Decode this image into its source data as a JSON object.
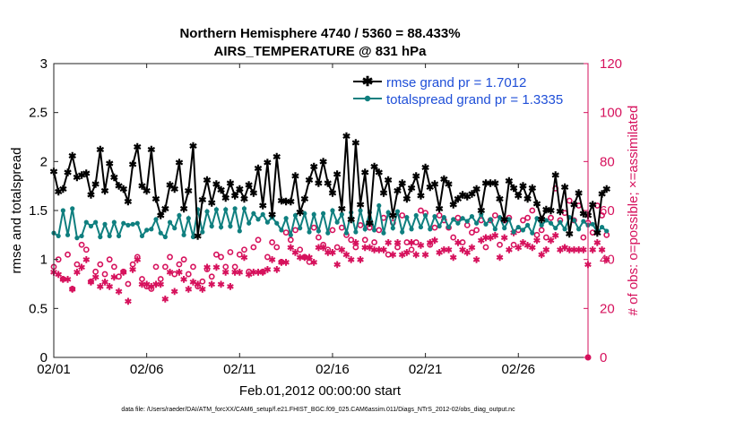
{
  "chart_data": {
    "type": "line",
    "title": "Northern Hemisphere 4740 / 5360 = 88.433%",
    "subtitle": "AIRS_TEMPERATURE @ 831 hPa",
    "xlabel": "Feb.01,2012 00:00:00 start",
    "ylabel": "rmse and totalspread",
    "ylabel_right": "# of obs: o=possible; ×=assimilated",
    "footer": "data file: /Users/raeder/DAI/ATM_forcXX/CAM6_setup/f.e21.FHIST_BGC.f09_025.CAM6assim.011/Diags_NTrS_2012-02/obs_diag_output.nc",
    "x_range": [
      1,
      29.75
    ],
    "ylim": [
      0,
      3
    ],
    "ylim_right": [
      0,
      120
    ],
    "x_ticks": [
      {
        "value": 1,
        "label": "02/01"
      },
      {
        "value": 6,
        "label": "02/06"
      },
      {
        "value": 11,
        "label": "02/11"
      },
      {
        "value": 16,
        "label": "02/16"
      },
      {
        "value": 21,
        "label": "02/21"
      },
      {
        "value": 26,
        "label": "02/26"
      }
    ],
    "y_ticks": [
      "0",
      "0.5",
      "1",
      "1.5",
      "2",
      "2.5",
      "3"
    ],
    "y_ticks_right": [
      "0",
      "20",
      "40",
      "60",
      "80",
      "100",
      "120"
    ],
    "colors": {
      "rmse": "#000000",
      "spread": "#0f7f7f",
      "obs": "#d6115c",
      "legend_text": "#1f4fd8"
    },
    "series": [
      {
        "name": "rmse grand pr = 1.7012",
        "values": [
          1.9,
          1.69,
          1.72,
          1.89,
          2.06,
          1.84,
          1.86,
          1.88,
          1.66,
          1.77,
          2.12,
          1.7,
          1.98,
          1.84,
          1.75,
          1.72,
          1.59,
          1.97,
          2.15,
          1.75,
          1.7,
          2.12,
          1.62,
          1.45,
          1.52,
          1.76,
          1.72,
          1.99,
          1.52,
          1.7,
          2.16,
          1.24,
          1.61,
          1.81,
          1.58,
          1.77,
          1.71,
          1.63,
          1.78,
          1.65,
          1.72,
          1.62,
          1.76,
          1.68,
          1.93,
          1.55,
          1.99,
          1.46,
          2.05,
          1.6,
          1.59,
          1.59,
          1.85,
          1.48,
          1.62,
          1.81,
          1.95,
          1.78,
          2.0,
          1.78,
          1.68,
          1.87,
          1.52,
          2.26,
          1.41,
          2.19,
          1.56,
          1.89,
          1.37,
          1.95,
          1.89,
          1.68,
          1.81,
          1.45,
          1.7,
          1.78,
          1.62,
          1.73,
          1.85,
          1.65,
          1.94,
          1.74,
          1.77,
          1.52,
          1.82,
          1.77,
          1.56,
          1.62,
          1.66,
          1.64,
          1.67,
          1.72,
          1.5,
          1.78,
          1.78,
          1.78,
          1.62,
          1.41,
          1.8,
          1.73,
          1.65,
          1.75,
          1.62,
          1.73,
          1.57,
          1.41,
          1.51,
          1.5,
          1.86,
          1.49,
          1.74,
          1.26,
          1.56,
          1.68,
          1.47,
          1.45,
          1.56,
          1.27,
          1.67,
          1.72
        ]
      },
      {
        "name": "totalspread grand pr = 1.3335",
        "values": [
          1.27,
          1.24,
          1.5,
          1.25,
          1.52,
          1.22,
          1.24,
          1.38,
          1.34,
          1.38,
          1.23,
          1.36,
          1.24,
          1.38,
          1.24,
          1.37,
          1.35,
          1.36,
          1.37,
          1.24,
          1.3,
          1.31,
          1.41,
          1.27,
          1.23,
          1.38,
          1.32,
          1.45,
          1.25,
          1.42,
          1.23,
          1.51,
          1.28,
          1.49,
          1.34,
          1.51,
          1.33,
          1.51,
          1.34,
          1.52,
          1.29,
          1.52,
          1.37,
          1.47,
          1.41,
          1.46,
          1.38,
          1.43,
          1.37,
          1.3,
          1.42,
          1.25,
          1.45,
          1.32,
          1.47,
          1.28,
          1.46,
          1.29,
          1.47,
          1.27,
          1.5,
          1.38,
          1.46,
          1.27,
          1.48,
          1.28,
          1.5,
          1.31,
          1.48,
          1.3,
          1.55,
          1.27,
          1.48,
          1.32,
          1.49,
          1.28,
          1.43,
          1.31,
          1.45,
          1.33,
          1.45,
          1.31,
          1.44,
          1.34,
          1.43,
          1.33,
          1.41,
          1.37,
          1.42,
          1.39,
          1.44,
          1.37,
          1.46,
          1.36,
          1.41,
          1.31,
          1.43,
          1.32,
          1.41,
          1.28,
          1.33,
          1.3,
          1.35,
          1.27,
          1.42,
          1.35,
          1.4,
          1.37,
          1.32,
          1.38,
          1.31,
          1.43,
          1.4,
          1.31,
          1.39,
          1.35,
          1.36,
          1.28,
          1.33,
          1.29
        ]
      },
      {
        "name": "obs possible",
        "values": [
          37,
          40,
          32,
          42,
          28,
          38,
          46,
          44,
          31,
          35,
          38,
          34,
          40,
          37,
          33,
          35,
          30,
          38,
          41,
          32,
          29,
          28,
          37,
          32,
          37,
          41,
          34,
          38,
          40,
          34,
          37,
          29,
          31,
          36,
          33,
          42,
          41,
          37,
          43,
          37,
          42,
          44,
          35,
          45,
          48,
          35,
          41,
          47,
          45,
          39,
          51,
          48,
          52,
          44,
          41,
          39,
          53,
          49,
          46,
          44,
          52,
          45,
          53,
          50,
          48,
          45,
          54,
          48,
          53,
          47,
          52,
          57,
          42,
          55,
          45,
          58,
          47,
          44,
          47,
          60,
          59,
          46,
          53,
          58,
          56,
          53,
          49,
          57,
          47,
          54,
          51,
          52,
          56,
          45,
          56,
          58,
          46,
          56,
          57,
          46,
          52,
          56,
          57,
          60,
          50,
          52,
          49,
          57,
          69,
          56,
          59,
          64,
          56,
          62,
          49,
          55,
          51,
          62,
          58,
          50
        ]
      },
      {
        "name": "obs assimilated",
        "values": [
          35,
          34,
          32,
          32,
          28,
          35,
          37,
          40,
          31,
          33,
          29,
          31,
          29,
          33,
          27,
          35,
          23,
          36,
          40,
          30,
          30,
          29,
          30,
          30,
          24,
          35,
          27,
          35,
          32,
          28,
          31,
          30,
          28,
          37,
          30,
          37,
          30,
          35,
          29,
          35,
          35,
          41,
          34,
          35,
          35,
          35,
          36,
          40,
          36,
          39,
          39,
          45,
          43,
          41,
          41,
          41,
          39,
          45,
          45,
          43,
          43,
          38,
          44,
          42,
          40,
          47,
          40,
          45,
          45,
          44,
          44,
          44,
          47,
          42,
          47,
          42,
          43,
          47,
          42,
          46,
          42,
          47,
          48,
          43,
          44,
          44,
          41,
          47,
          44,
          43,
          45,
          40,
          48,
          49,
          49,
          50,
          41,
          49,
          44,
          51,
          45,
          47,
          46,
          45,
          48,
          42,
          44,
          48,
          50,
          44,
          45,
          44,
          44,
          44,
          44,
          38,
          44,
          47,
          44,
          40
        ]
      }
    ]
  }
}
